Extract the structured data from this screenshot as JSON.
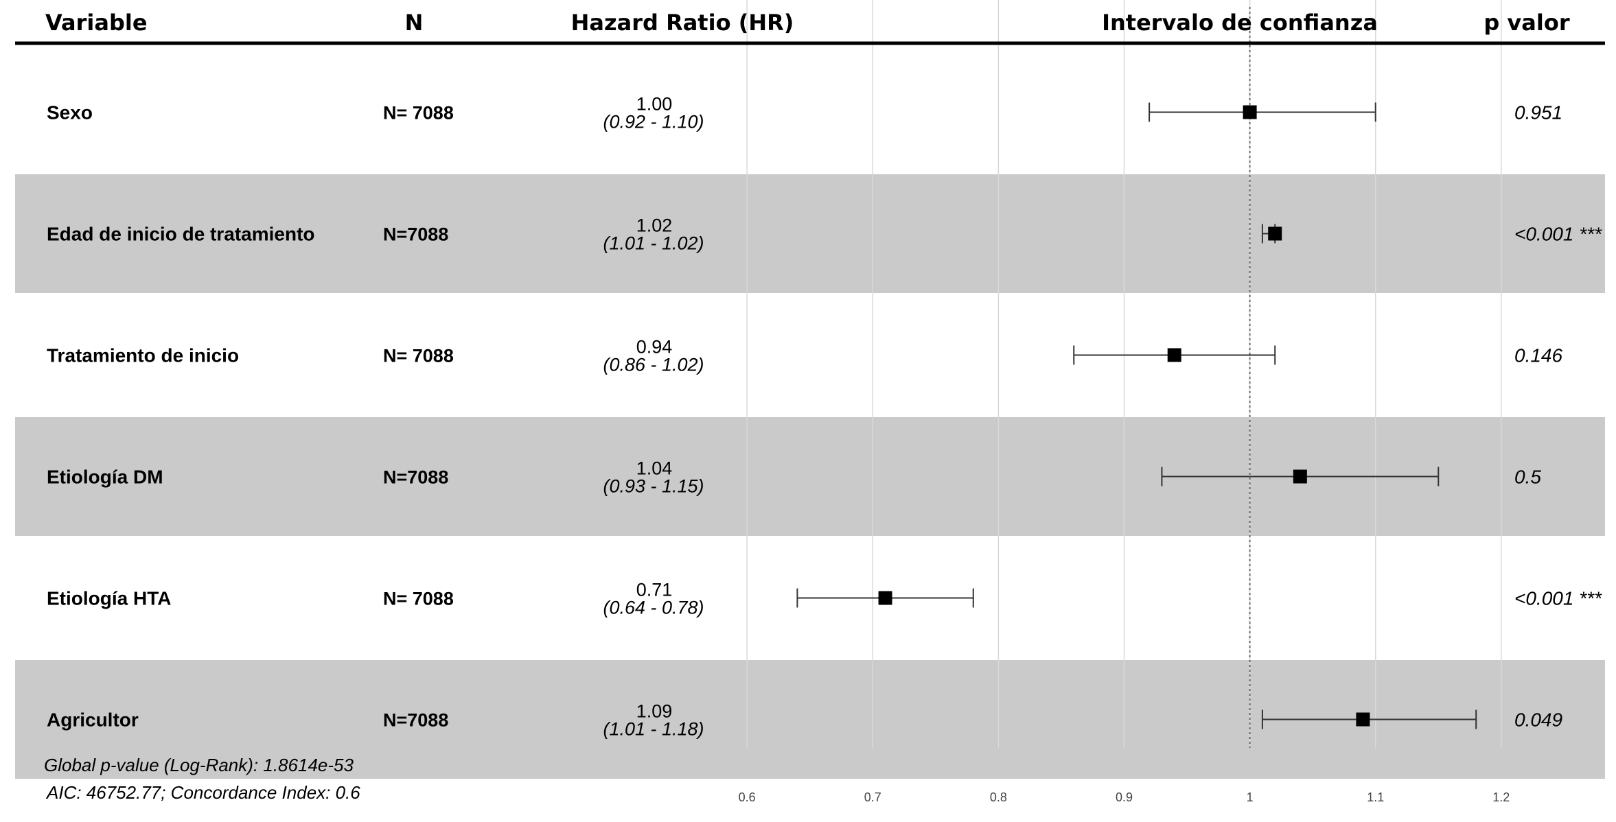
{
  "headers": {
    "variable": "Variable",
    "n": "N",
    "hr": "Hazard Ratio (HR)",
    "ci": "Intervalo de confianza",
    "p": "p valor"
  },
  "colors": {
    "band": "#cacaca",
    "marker": "#000000",
    "grid": "#d9d9d9",
    "reference": "#666666"
  },
  "chart_data": {
    "type": "forest",
    "xlim": [
      0.53,
      1.27
    ],
    "x_ticks": [
      0.6,
      0.7,
      0.8,
      0.9,
      1,
      1.1,
      1.2
    ],
    "x_tick_labels": [
      "0.6",
      "0.7",
      "0.8",
      "0.9",
      "1",
      "1.1",
      "1.2"
    ],
    "reference_line": 1,
    "rows": [
      {
        "variable": "Sexo",
        "n": "N= 7088",
        "hr": 1.0,
        "lower": 0.92,
        "upper": 1.1,
        "hr_label": "1.00",
        "ci_label": "(0.92 - 1.10)",
        "p_label": "0.951",
        "shaded": false
      },
      {
        "variable": "Edad de inicio de tratamiento",
        "n": "N=7088",
        "hr": 1.02,
        "lower": 1.01,
        "upper": 1.02,
        "hr_label": "1.02",
        "ci_label": "(1.01 - 1.02)",
        "p_label": "<0.001 ***",
        "shaded": true
      },
      {
        "variable": "Tratamiento de inicio",
        "n": "N= 7088",
        "hr": 0.94,
        "lower": 0.86,
        "upper": 1.02,
        "hr_label": "0.94",
        "ci_label": "(0.86 - 1.02)",
        "p_label": "0.146",
        "shaded": false
      },
      {
        "variable": "Etiología DM",
        "n": "N=7088",
        "hr": 1.04,
        "lower": 0.93,
        "upper": 1.15,
        "hr_label": "1.04",
        "ci_label": "(0.93 - 1.15)",
        "p_label": "0.5",
        "shaded": true
      },
      {
        "variable": "Etiología HTA",
        "n": "N= 7088",
        "hr": 0.71,
        "lower": 0.64,
        "upper": 0.78,
        "hr_label": "0.71",
        "ci_label": "(0.64 - 0.78)",
        "p_label": "<0.001 ***",
        "shaded": false
      },
      {
        "variable": "Agricultor",
        "n": "N=7088",
        "hr": 1.09,
        "lower": 1.01,
        "upper": 1.18,
        "hr_label": "1.09",
        "ci_label": "(1.01 - 1.18)",
        "p_label": "0.049",
        "shaded": true
      }
    ],
    "footer": [
      "Global p-value (Log-Rank): 1.8614e-53",
      "AIC: 46752.77; Concordance Index: 0.6"
    ]
  }
}
